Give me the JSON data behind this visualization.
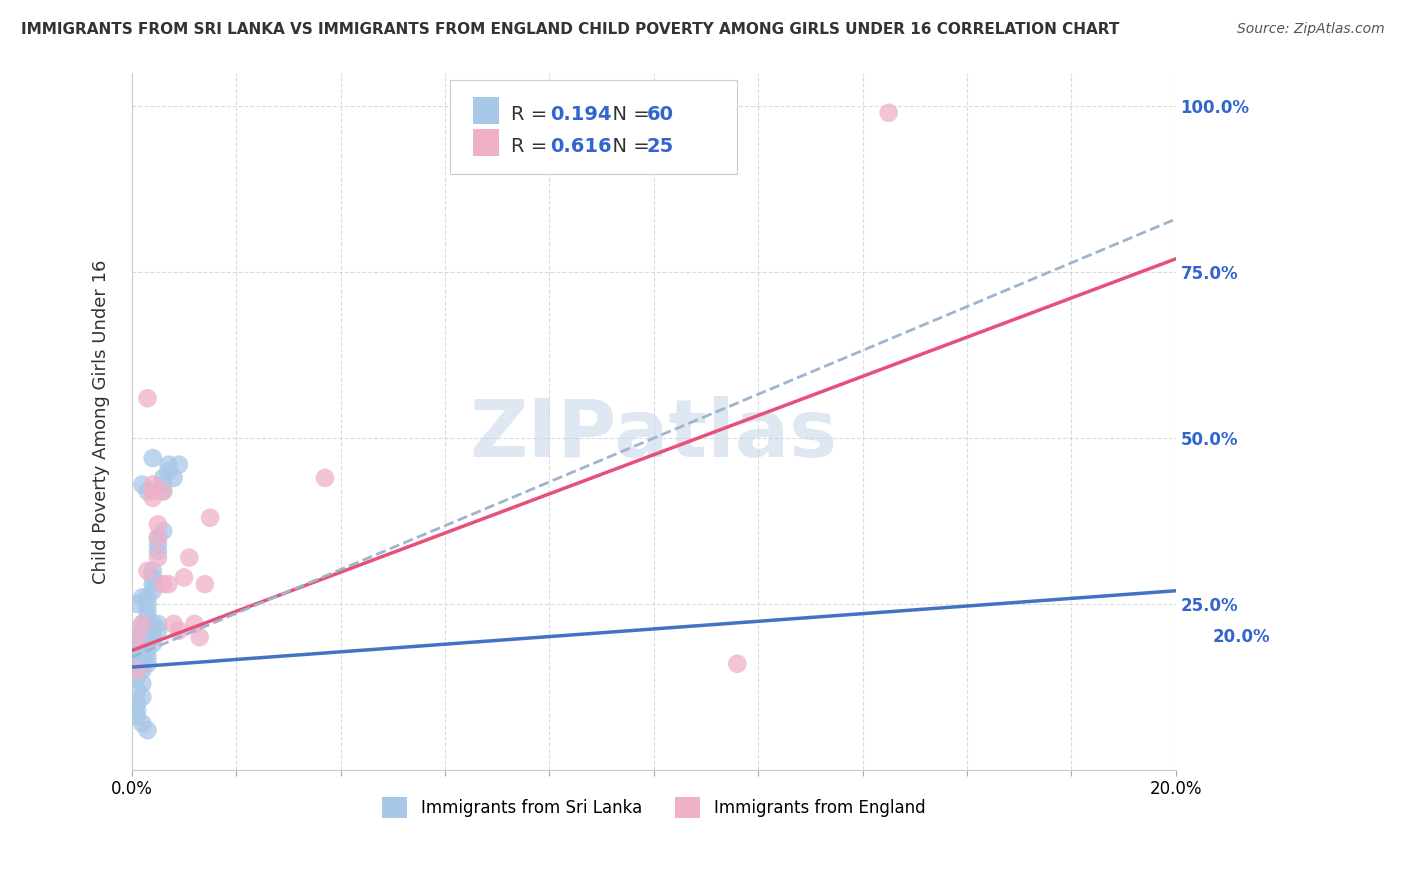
{
  "title": "IMMIGRANTS FROM SRI LANKA VS IMMIGRANTS FROM ENGLAND CHILD POVERTY AMONG GIRLS UNDER 16 CORRELATION CHART",
  "source": "Source: ZipAtlas.com",
  "ylabel": "Child Poverty Among Girls Under 16",
  "legend_label1": "Immigrants from Sri Lanka",
  "legend_label2": "Immigrants from England",
  "R1": "0.194",
  "N1": "60",
  "R2": "0.616",
  "N2": "25",
  "color_sri_lanka": "#a8c8e8",
  "color_england": "#f0b0c8",
  "line_color_sri_lanka": "#4472c4",
  "line_color_england": "#e8507a",
  "line_color_dashed": "#a0b4cc",
  "background_color": "#ffffff",
  "watermark_text": "ZIPatlas",
  "watermark_color": "#c8d8ea",
  "xlim": [
    0,
    0.2
  ],
  "ylim": [
    0,
    1.05
  ],
  "sl_x": [
    0.001,
    0.001,
    0.001,
    0.001,
    0.001,
    0.001,
    0.001,
    0.001,
    0.001,
    0.001,
    0.002,
    0.002,
    0.002,
    0.002,
    0.002,
    0.002,
    0.002,
    0.002,
    0.002,
    0.002,
    0.003,
    0.003,
    0.003,
    0.003,
    0.003,
    0.003,
    0.003,
    0.003,
    0.003,
    0.003,
    0.004,
    0.004,
    0.004,
    0.004,
    0.004,
    0.004,
    0.004,
    0.004,
    0.005,
    0.005,
    0.005,
    0.005,
    0.005,
    0.006,
    0.006,
    0.006,
    0.006,
    0.007,
    0.007,
    0.008,
    0.001,
    0.002,
    0.003,
    0.001,
    0.002,
    0.003,
    0.004,
    0.002,
    0.003,
    0.009
  ],
  "sl_y": [
    0.2,
    0.19,
    0.18,
    0.17,
    0.16,
    0.15,
    0.14,
    0.12,
    0.1,
    0.09,
    0.22,
    0.21,
    0.2,
    0.19,
    0.18,
    0.17,
    0.16,
    0.15,
    0.13,
    0.11,
    0.25,
    0.24,
    0.23,
    0.22,
    0.21,
    0.2,
    0.19,
    0.18,
    0.17,
    0.16,
    0.3,
    0.29,
    0.28,
    0.27,
    0.22,
    0.21,
    0.2,
    0.19,
    0.35,
    0.34,
    0.33,
    0.22,
    0.21,
    0.44,
    0.43,
    0.42,
    0.36,
    0.46,
    0.45,
    0.44,
    0.08,
    0.07,
    0.06,
    0.25,
    0.26,
    0.26,
    0.47,
    0.43,
    0.42,
    0.46
  ],
  "en_x": [
    0.001,
    0.002,
    0.003,
    0.004,
    0.005,
    0.006,
    0.007,
    0.008,
    0.009,
    0.01,
    0.011,
    0.012,
    0.013,
    0.014,
    0.015,
    0.003,
    0.004,
    0.005,
    0.006,
    0.001,
    0.004,
    0.005,
    0.037,
    0.116,
    0.145
  ],
  "en_y": [
    0.2,
    0.22,
    0.3,
    0.42,
    0.32,
    0.28,
    0.28,
    0.22,
    0.21,
    0.29,
    0.32,
    0.22,
    0.2,
    0.28,
    0.38,
    0.56,
    0.41,
    0.35,
    0.42,
    0.15,
    0.43,
    0.37,
    0.44,
    0.16,
    0.99
  ],
  "line_sl_x0": 0.0,
  "line_sl_y0": 0.155,
  "line_sl_x1": 0.2,
  "line_sl_y1": 0.27,
  "line_en_x0": 0.0,
  "line_en_y0": 0.18,
  "line_en_x1": 0.2,
  "line_en_y1": 0.77,
  "line_dash_x0": 0.0,
  "line_dash_y0": 0.17,
  "line_dash_x1": 0.2,
  "line_dash_y1": 0.83
}
